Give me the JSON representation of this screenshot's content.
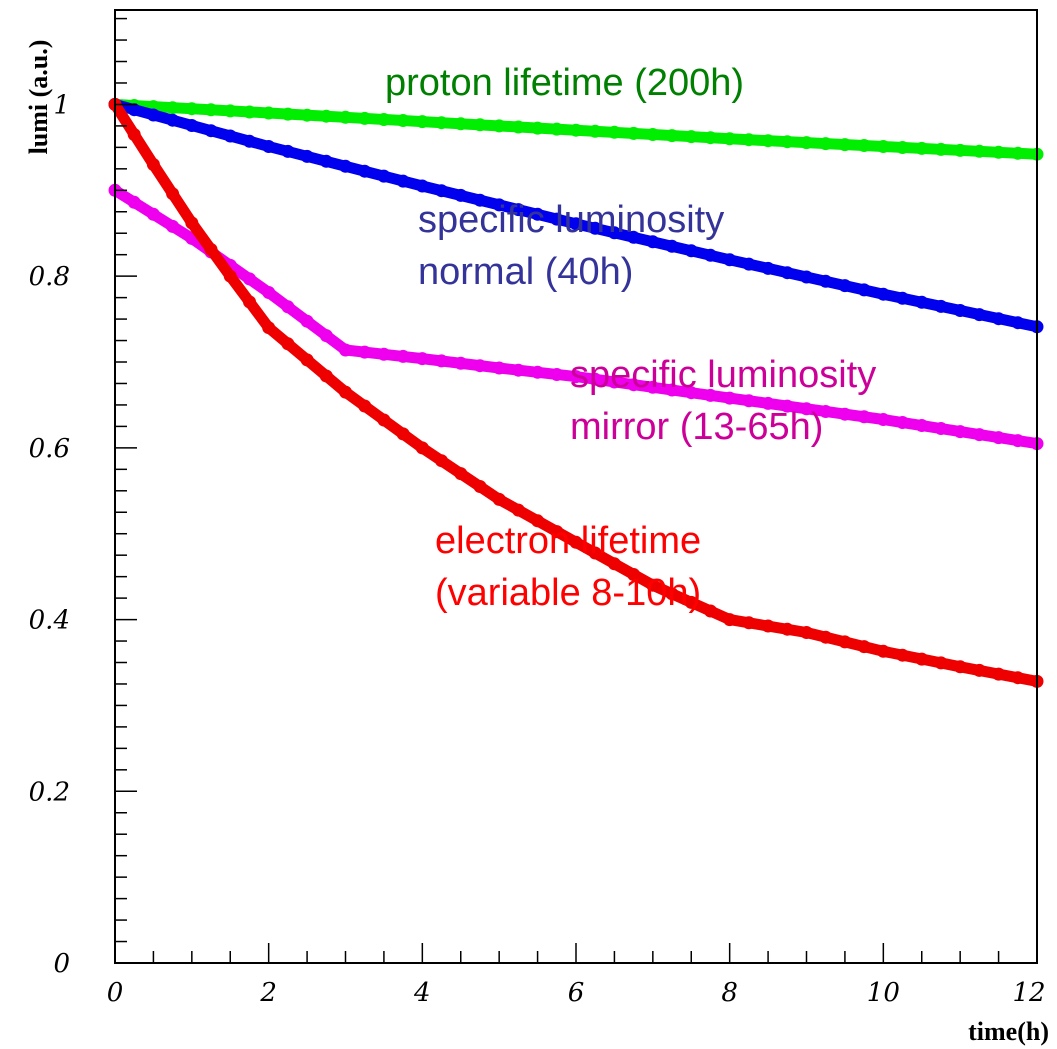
{
  "chart_data": {
    "type": "line",
    "xlabel": "time(h)",
    "ylabel": "lumi (a.u.)",
    "xlim": [
      0,
      12
    ],
    "ylim": [
      0,
      1.11
    ],
    "x_ticks": [
      "0",
      "2",
      "4",
      "6",
      "8",
      "10",
      "12"
    ],
    "y_ticks": [
      "0",
      "0.2",
      "0.4",
      "0.6",
      "0.8",
      "1"
    ],
    "grid": false,
    "series": [
      {
        "key": "proton",
        "color": "#00ee00",
        "x": [
          0,
          2,
          4,
          6,
          8,
          10,
          12
        ],
        "y": [
          1.0,
          0.99,
          0.98,
          0.97,
          0.96,
          0.951,
          0.942
        ]
      },
      {
        "key": "normal",
        "color": "#0000ee",
        "x": [
          0,
          2,
          4,
          6,
          8,
          10,
          12
        ],
        "y": [
          1.0,
          0.951,
          0.905,
          0.861,
          0.819,
          0.779,
          0.741
        ]
      },
      {
        "key": "mirror",
        "color": "#ee00ee",
        "x": [
          0,
          1,
          2,
          3,
          4,
          5,
          6,
          8,
          10,
          12
        ],
        "y": [
          0.9,
          0.844,
          0.781,
          0.714,
          0.704,
          0.693,
          0.683,
          0.658,
          0.633,
          0.605
        ]
      },
      {
        "key": "electron",
        "color": "#ee0000",
        "x": [
          0,
          0.5,
          1,
          1.5,
          2,
          3,
          4,
          5,
          6,
          7,
          8,
          9,
          10,
          11,
          12
        ],
        "y": [
          1.0,
          0.93,
          0.862,
          0.8,
          0.74,
          0.665,
          0.6,
          0.54,
          0.49,
          0.44,
          0.4,
          0.385,
          0.363,
          0.345,
          0.328
        ]
      }
    ],
    "annotations": [
      {
        "key": "proton",
        "color": "#008000",
        "lines": [
          "proton lifetime (200h)"
        ]
      },
      {
        "key": "normal",
        "color": "#333399",
        "lines": [
          "specific luminosity",
          "normal  (40h)"
        ]
      },
      {
        "key": "mirror",
        "color": "#cc0099",
        "lines": [
          "specific luminosity",
          "mirror  (13-65h)"
        ]
      },
      {
        "key": "electron",
        "color": "#ff0000",
        "lines": [
          "electron lifetime",
          "(variable 8-10h)"
        ]
      }
    ]
  }
}
